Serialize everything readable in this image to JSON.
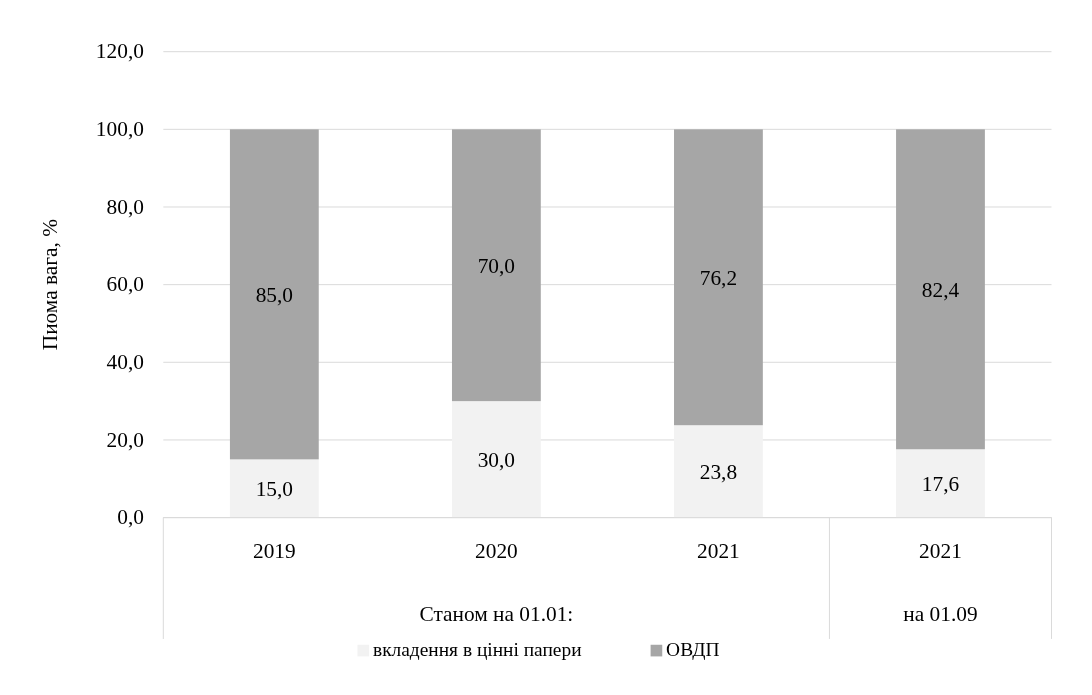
{
  "chart_data": {
    "type": "bar",
    "stacked": true,
    "ylabel": "Пиома вага, %",
    "categories": [
      "2019",
      "2020",
      "2021",
      "2021"
    ],
    "series": [
      {
        "name": "вкладення в цінні папери",
        "color": "#f2f2f2",
        "values": [
          15.0,
          30.0,
          23.8,
          17.6
        ],
        "value_labels": [
          "15,0",
          "30,0",
          "23,8",
          "17,6"
        ]
      },
      {
        "name": "ОВДП",
        "color": "#a6a6a6",
        "values": [
          85.0,
          70.0,
          76.2,
          82.4
        ],
        "value_labels": [
          "85,0",
          "70,0",
          "76,2",
          "82,4"
        ]
      }
    ],
    "ylim": [
      0,
      120
    ],
    "yticks": [
      {
        "value": 0,
        "label": "0,0"
      },
      {
        "value": 20,
        "label": "20,0"
      },
      {
        "value": 40,
        "label": "40,0"
      },
      {
        "value": 60,
        "label": "60,0"
      },
      {
        "value": 80,
        "label": "80,0"
      },
      {
        "value": 100,
        "label": "100,0"
      },
      {
        "value": 120,
        "label": "120,0"
      }
    ],
    "grid": "y",
    "legend": "bottom",
    "annotations": [
      "Станом на 01.01:",
      "на 01.09"
    ]
  }
}
